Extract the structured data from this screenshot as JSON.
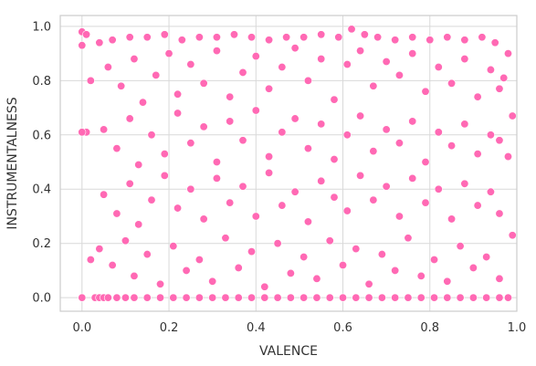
{
  "chart_data": {
    "type": "scatter",
    "title": "",
    "xlabel": "VALENCE",
    "ylabel": "INSTRUMENTALNESS",
    "xlim": [
      -0.05,
      1.0
    ],
    "ylim": [
      -0.05,
      1.04
    ],
    "xticks": [
      0.0,
      0.2,
      0.4,
      0.6,
      0.8,
      1.0
    ],
    "xtick_labels": [
      "0.0",
      "0.2",
      "0.4",
      "0.6",
      "0.8",
      "1.0"
    ],
    "yticks": [
      0.0,
      0.2,
      0.4,
      0.6,
      0.8,
      1.0
    ],
    "ytick_labels": [
      "0.0",
      "0.2",
      "0.4",
      "0.6",
      "0.8",
      "1.0"
    ],
    "grid": true,
    "legend": "none",
    "marker_color": "#ff69b4",
    "marker_edge_color": "#ffffff",
    "series": [
      {
        "points": [
          [
            0.0,
            0.0
          ],
          [
            0.0,
            0.98
          ],
          [
            0.01,
            0.97
          ],
          [
            0.0,
            0.93
          ],
          [
            0.01,
            0.61
          ],
          [
            0.0,
            0.61
          ],
          [
            0.02,
            0.8
          ],
          [
            0.02,
            0.14
          ],
          [
            0.03,
            0.0
          ],
          [
            0.04,
            0.0
          ],
          [
            0.05,
            0.0
          ],
          [
            0.06,
            0.0
          ],
          [
            0.08,
            0.0
          ],
          [
            0.1,
            0.0
          ],
          [
            0.12,
            0.0
          ],
          [
            0.15,
            0.0
          ],
          [
            0.18,
            0.0
          ],
          [
            0.21,
            0.0
          ],
          [
            0.24,
            0.0
          ],
          [
            0.27,
            0.0
          ],
          [
            0.3,
            0.0
          ],
          [
            0.33,
            0.0
          ],
          [
            0.36,
            0.0
          ],
          [
            0.39,
            0.0
          ],
          [
            0.42,
            0.0
          ],
          [
            0.45,
            0.0
          ],
          [
            0.48,
            0.0
          ],
          [
            0.51,
            0.0
          ],
          [
            0.54,
            0.0
          ],
          [
            0.57,
            0.0
          ],
          [
            0.6,
            0.0
          ],
          [
            0.63,
            0.0
          ],
          [
            0.66,
            0.0
          ],
          [
            0.69,
            0.0
          ],
          [
            0.72,
            0.0
          ],
          [
            0.75,
            0.0
          ],
          [
            0.78,
            0.0
          ],
          [
            0.81,
            0.0
          ],
          [
            0.84,
            0.0
          ],
          [
            0.87,
            0.0
          ],
          [
            0.9,
            0.0
          ],
          [
            0.93,
            0.0
          ],
          [
            0.96,
            0.0
          ],
          [
            0.98,
            0.0
          ],
          [
            0.04,
            0.94
          ],
          [
            0.07,
            0.95
          ],
          [
            0.11,
            0.96
          ],
          [
            0.15,
            0.96
          ],
          [
            0.19,
            0.97
          ],
          [
            0.23,
            0.95
          ],
          [
            0.27,
            0.96
          ],
          [
            0.31,
            0.96
          ],
          [
            0.35,
            0.97
          ],
          [
            0.39,
            0.96
          ],
          [
            0.43,
            0.95
          ],
          [
            0.47,
            0.96
          ],
          [
            0.51,
            0.96
          ],
          [
            0.55,
            0.97
          ],
          [
            0.59,
            0.96
          ],
          [
            0.62,
            0.99
          ],
          [
            0.65,
            0.97
          ],
          [
            0.68,
            0.96
          ],
          [
            0.72,
            0.95
          ],
          [
            0.76,
            0.96
          ],
          [
            0.8,
            0.95
          ],
          [
            0.84,
            0.96
          ],
          [
            0.88,
            0.95
          ],
          [
            0.92,
            0.96
          ],
          [
            0.95,
            0.94
          ],
          [
            0.98,
            0.9
          ],
          [
            0.99,
            0.67
          ],
          [
            0.99,
            0.23
          ],
          [
            0.98,
            0.52
          ],
          [
            0.97,
            0.81
          ],
          [
            0.06,
            0.85
          ],
          [
            0.09,
            0.78
          ],
          [
            0.12,
            0.88
          ],
          [
            0.14,
            0.72
          ],
          [
            0.17,
            0.82
          ],
          [
            0.2,
            0.9
          ],
          [
            0.22,
            0.75
          ],
          [
            0.25,
            0.86
          ],
          [
            0.28,
            0.79
          ],
          [
            0.31,
            0.91
          ],
          [
            0.34,
            0.74
          ],
          [
            0.37,
            0.83
          ],
          [
            0.4,
            0.89
          ],
          [
            0.43,
            0.77
          ],
          [
            0.46,
            0.85
          ],
          [
            0.49,
            0.92
          ],
          [
            0.52,
            0.8
          ],
          [
            0.55,
            0.88
          ],
          [
            0.58,
            0.73
          ],
          [
            0.61,
            0.86
          ],
          [
            0.64,
            0.91
          ],
          [
            0.67,
            0.78
          ],
          [
            0.7,
            0.87
          ],
          [
            0.73,
            0.82
          ],
          [
            0.76,
            0.9
          ],
          [
            0.79,
            0.76
          ],
          [
            0.82,
            0.85
          ],
          [
            0.85,
            0.79
          ],
          [
            0.88,
            0.88
          ],
          [
            0.91,
            0.74
          ],
          [
            0.94,
            0.84
          ],
          [
            0.96,
            0.77
          ],
          [
            0.05,
            0.62
          ],
          [
            0.08,
            0.55
          ],
          [
            0.11,
            0.66
          ],
          [
            0.13,
            0.49
          ],
          [
            0.16,
            0.6
          ],
          [
            0.19,
            0.53
          ],
          [
            0.22,
            0.68
          ],
          [
            0.25,
            0.57
          ],
          [
            0.28,
            0.63
          ],
          [
            0.31,
            0.5
          ],
          [
            0.34,
            0.65
          ],
          [
            0.37,
            0.58
          ],
          [
            0.4,
            0.69
          ],
          [
            0.43,
            0.52
          ],
          [
            0.46,
            0.61
          ],
          [
            0.49,
            0.66
          ],
          [
            0.52,
            0.55
          ],
          [
            0.55,
            0.64
          ],
          [
            0.58,
            0.51
          ],
          [
            0.61,
            0.6
          ],
          [
            0.64,
            0.67
          ],
          [
            0.67,
            0.54
          ],
          [
            0.7,
            0.62
          ],
          [
            0.73,
            0.57
          ],
          [
            0.76,
            0.65
          ],
          [
            0.79,
            0.5
          ],
          [
            0.82,
            0.61
          ],
          [
            0.85,
            0.56
          ],
          [
            0.88,
            0.64
          ],
          [
            0.91,
            0.53
          ],
          [
            0.94,
            0.6
          ],
          [
            0.96,
            0.58
          ],
          [
            0.05,
            0.38
          ],
          [
            0.08,
            0.31
          ],
          [
            0.11,
            0.42
          ],
          [
            0.13,
            0.27
          ],
          [
            0.16,
            0.36
          ],
          [
            0.19,
            0.45
          ],
          [
            0.22,
            0.33
          ],
          [
            0.25,
            0.4
          ],
          [
            0.28,
            0.29
          ],
          [
            0.31,
            0.44
          ],
          [
            0.34,
            0.35
          ],
          [
            0.37,
            0.41
          ],
          [
            0.4,
            0.3
          ],
          [
            0.43,
            0.46
          ],
          [
            0.46,
            0.34
          ],
          [
            0.49,
            0.39
          ],
          [
            0.52,
            0.28
          ],
          [
            0.55,
            0.43
          ],
          [
            0.58,
            0.37
          ],
          [
            0.61,
            0.32
          ],
          [
            0.64,
            0.45
          ],
          [
            0.67,
            0.36
          ],
          [
            0.7,
            0.41
          ],
          [
            0.73,
            0.3
          ],
          [
            0.76,
            0.44
          ],
          [
            0.79,
            0.35
          ],
          [
            0.82,
            0.4
          ],
          [
            0.85,
            0.29
          ],
          [
            0.88,
            0.42
          ],
          [
            0.91,
            0.34
          ],
          [
            0.94,
            0.39
          ],
          [
            0.96,
            0.31
          ],
          [
            0.04,
            0.18
          ],
          [
            0.07,
            0.12
          ],
          [
            0.1,
            0.21
          ],
          [
            0.12,
            0.08
          ],
          [
            0.15,
            0.16
          ],
          [
            0.18,
            0.05
          ],
          [
            0.21,
            0.19
          ],
          [
            0.24,
            0.1
          ],
          [
            0.27,
            0.14
          ],
          [
            0.3,
            0.06
          ],
          [
            0.33,
            0.22
          ],
          [
            0.36,
            0.11
          ],
          [
            0.39,
            0.17
          ],
          [
            0.42,
            0.04
          ],
          [
            0.45,
            0.2
          ],
          [
            0.48,
            0.09
          ],
          [
            0.51,
            0.15
          ],
          [
            0.54,
            0.07
          ],
          [
            0.57,
            0.21
          ],
          [
            0.6,
            0.12
          ],
          [
            0.63,
            0.18
          ],
          [
            0.66,
            0.05
          ],
          [
            0.69,
            0.16
          ],
          [
            0.72,
            0.1
          ],
          [
            0.75,
            0.22
          ],
          [
            0.78,
            0.08
          ],
          [
            0.81,
            0.14
          ],
          [
            0.84,
            0.06
          ],
          [
            0.87,
            0.19
          ],
          [
            0.9,
            0.11
          ],
          [
            0.93,
            0.15
          ],
          [
            0.96,
            0.07
          ]
        ]
      }
    ]
  }
}
